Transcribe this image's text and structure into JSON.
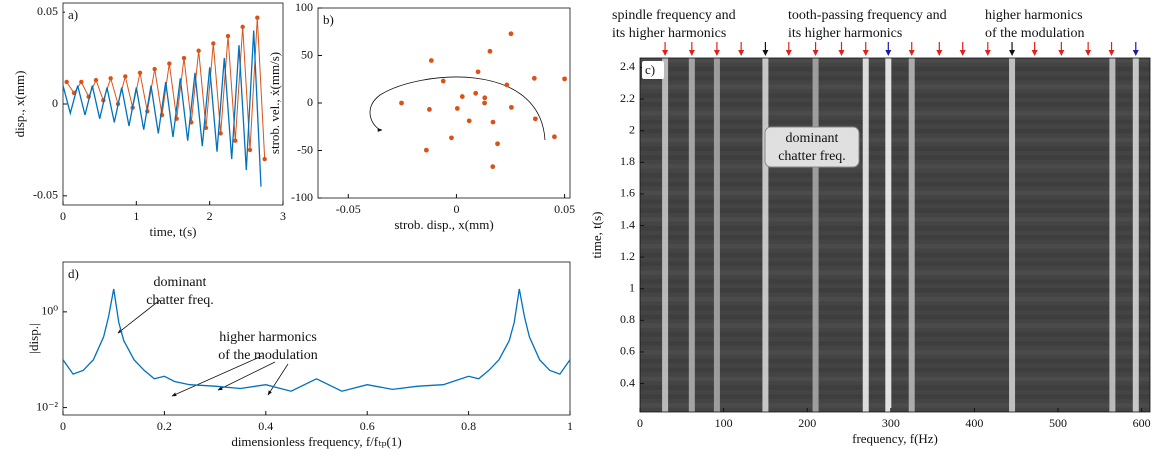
{
  "chart_data": [
    {
      "type": "line",
      "panel_label": "a)",
      "xlabel": "time, t(s)",
      "ylabel": "disp., x(mm)",
      "xlim": [
        0,
        3
      ],
      "ylim": [
        -0.055,
        0.055
      ],
      "xticks": [
        0,
        1,
        2,
        3
      ],
      "yticks": [
        -0.05,
        0,
        0.05
      ],
      "series": [
        {
          "color": "#d95319",
          "markers": true,
          "x": [
            0.05,
            0.15,
            0.25,
            0.35,
            0.45,
            0.55,
            0.65,
            0.75,
            0.85,
            0.95,
            1.05,
            1.15,
            1.25,
            1.35,
            1.45,
            1.55,
            1.65,
            1.75,
            1.85,
            1.95,
            2.05,
            2.15,
            2.25,
            2.35,
            2.45,
            2.55,
            2.65,
            2.75
          ],
          "values": [
            0.012,
            0.006,
            0.012,
            0.004,
            0.013,
            0.002,
            0.014,
            0,
            0.015,
            -0.002,
            0.017,
            -0.004,
            0.019,
            -0.006,
            0.022,
            -0.008,
            0.025,
            -0.01,
            0.029,
            -0.013,
            0.033,
            -0.016,
            0.037,
            -0.02,
            0.042,
            -0.025,
            0.047,
            -0.03
          ]
        },
        {
          "color": "#0072bd",
          "markers": false,
          "x": [
            0,
            0.1,
            0.2,
            0.3,
            0.4,
            0.5,
            0.6,
            0.7,
            0.8,
            0.9,
            1,
            1.1,
            1.2,
            1.3,
            1.4,
            1.5,
            1.6,
            1.7,
            1.8,
            1.9,
            2,
            2.1,
            2.2,
            2.3,
            2.4,
            2.5,
            2.6,
            2.7
          ],
          "values": [
            0.01,
            -0.005,
            0.01,
            -0.006,
            0.01,
            -0.008,
            0.009,
            -0.01,
            0.009,
            -0.012,
            0.009,
            -0.014,
            0.01,
            -0.016,
            0.012,
            -0.018,
            0.014,
            -0.02,
            0.017,
            -0.023,
            0.02,
            -0.026,
            0.025,
            -0.03,
            0.032,
            -0.036,
            0.04,
            -0.045
          ]
        }
      ]
    },
    {
      "type": "scatter",
      "panel_label": "b)",
      "xlabel": "strob. disp., x(mm)",
      "ylabel": "strob. vel., ẋ(mm/s)",
      "xlim": [
        -0.064,
        0.0525
      ],
      "ylim": [
        -100,
        100
      ],
      "xticks": [
        -0.05,
        0,
        0.05
      ],
      "yticks": [
        -100,
        -50,
        0,
        50,
        100
      ],
      "color": "#d95319",
      "x": [
        0.013,
        0.0131,
        0.0089,
        0.0027,
        0.0004,
        0.0059,
        0.0169,
        0.0254,
        0.0233,
        0.01,
        -0.0061,
        -0.0125,
        -0.0023,
        0.019,
        0.0365,
        0.036,
        0.0155,
        -0.0116,
        -0.0254,
        -0.0139,
        0.0168,
        0.0453,
        0.05,
        0.0252
      ],
      "values": [
        0,
        5.5,
        10.2,
        6.8,
        -5.7,
        -18.8,
        -20.1,
        -4.6,
        19,
        32.8,
        23.1,
        -6.8,
        -36.7,
        -42.9,
        -16.7,
        26,
        54.4,
        44.7,
        0,
        -49.6,
        -67,
        -35.6,
        25.4,
        72.9
      ]
    },
    {
      "type": "spectrogram",
      "panel_label": "c)",
      "xlabel": "frequency, f(Hz)",
      "ylabel": "time, t(s)",
      "xlim": [
        0,
        610
      ],
      "ylim": [
        0.22,
        2.46
      ],
      "xticks": [
        0,
        100,
        200,
        300,
        400,
        500,
        600
      ],
      "yticks": [
        0.4,
        0.6,
        0.8,
        1,
        1.2,
        1.4,
        1.6,
        1.8,
        2,
        2.2,
        2.4
      ],
      "x": [
        30,
        62,
        92,
        150,
        210,
        270,
        297,
        325,
        445,
        565,
        593
      ],
      "values": [
        0.7,
        0.55,
        0.5,
        0.8,
        0.5,
        0.95,
        1,
        0.6,
        0.75,
        0.7,
        0.8
      ],
      "arrow_groups": [
        {
          "color": "#e0201a",
          "x": [
            30,
            62,
            92,
            121,
            178,
            210,
            241,
            270,
            325,
            358,
            386,
            416,
            472,
            504,
            536,
            564
          ]
        },
        {
          "color": "#111111",
          "x": [
            150,
            445
          ]
        },
        {
          "color": "#1a1aa8",
          "x": [
            297,
            593
          ]
        }
      ],
      "annotations": [
        {
          "lines": [
            "spindle frequency and",
            "its higher harmonics"
          ],
          "color": "#111111"
        },
        {
          "lines": [
            "tooth-passing frequency and",
            "its higher harmonics"
          ],
          "color": "#1a1aa8"
        },
        {
          "lines": [
            "higher harmonics",
            "of the modulation"
          ],
          "color": "#e0201a"
        },
        {
          "lines": [
            "dominant",
            "chatter freq."
          ],
          "color": "#111111"
        }
      ]
    },
    {
      "type": "line",
      "panel_label": "d)",
      "xlabel": "dimensionless frequency, f/fₜₚ(1)",
      "ylabel": "|disp.|",
      "xlim": [
        0,
        1
      ],
      "ylim": [
        0.007,
        11
      ],
      "log_y": true,
      "xticks": [
        0,
        0.2,
        0.4,
        0.6,
        0.8,
        1
      ],
      "yticks": [
        {
          "value": 0.01,
          "label": "10⁻²"
        },
        {
          "value": 1,
          "label": "10⁰"
        }
      ],
      "series": [
        {
          "color": "#0072bd",
          "markers": false,
          "x": [
            0,
            0.02,
            0.04,
            0.06,
            0.08,
            0.09,
            0.1,
            0.11,
            0.12,
            0.14,
            0.16,
            0.18,
            0.2,
            0.22,
            0.25,
            0.3,
            0.35,
            0.4,
            0.45,
            0.5,
            0.55,
            0.6,
            0.65,
            0.7,
            0.75,
            0.8,
            0.82,
            0.84,
            0.86,
            0.88,
            0.89,
            0.9,
            0.91,
            0.92,
            0.94,
            0.96,
            0.98,
            1
          ],
          "values": [
            0.1,
            0.05,
            0.06,
            0.1,
            0.3,
            0.8,
            3,
            0.6,
            0.25,
            0.1,
            0.06,
            0.04,
            0.045,
            0.035,
            0.03,
            0.028,
            0.025,
            0.03,
            0.022,
            0.04,
            0.022,
            0.03,
            0.024,
            0.028,
            0.03,
            0.045,
            0.04,
            0.06,
            0.1,
            0.25,
            0.6,
            3,
            0.8,
            0.3,
            0.1,
            0.06,
            0.05,
            0.1
          ]
        }
      ],
      "annotations": [
        {
          "lines": [
            "dominant",
            "chatter freq."
          ],
          "color": "#111111"
        },
        {
          "lines": [
            "higher harmonics",
            "of the modulation"
          ],
          "color": "#e0201a"
        }
      ]
    }
  ]
}
